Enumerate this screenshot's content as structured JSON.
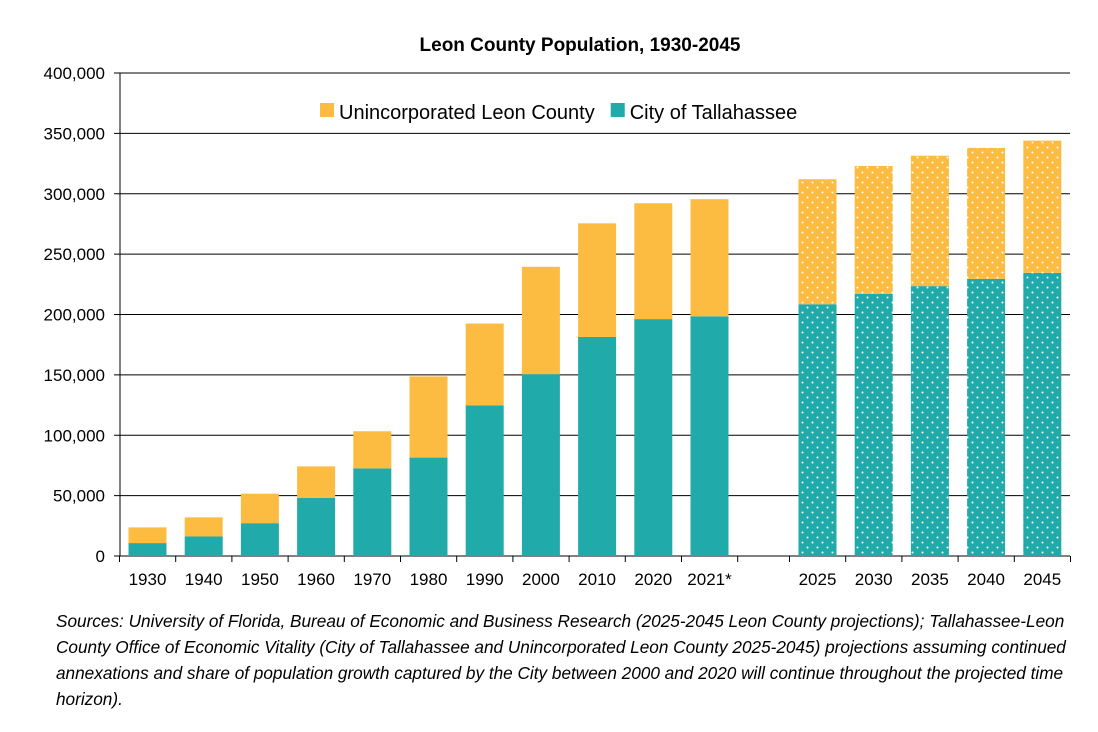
{
  "chart_data": {
    "type": "bar",
    "stacked": true,
    "title": "Leon County Population, 1930-2045",
    "xlabel": "",
    "ylabel": "",
    "ylim": [
      0,
      400000
    ],
    "yticks": [
      0,
      50000,
      100000,
      150000,
      200000,
      250000,
      300000,
      350000,
      400000
    ],
    "ytick_labels": [
      "0",
      "50,000",
      "100,000",
      "150,000",
      "200,000",
      "250,000",
      "300,000",
      "350,000",
      "400,000"
    ],
    "grid": true,
    "legend_position": "top-center",
    "categories": [
      "1930",
      "1940",
      "1950",
      "1960",
      "1970",
      "1980",
      "1990",
      "2000",
      "2010",
      "2020",
      "2021*",
      "2025",
      "2030",
      "2035",
      "2040",
      "2045"
    ],
    "projected": [
      false,
      false,
      false,
      false,
      false,
      false,
      false,
      false,
      false,
      false,
      false,
      true,
      true,
      true,
      true,
      true
    ],
    "series": [
      {
        "name": "City of Tallahassee",
        "color": "#20aaaa",
        "values": [
          10700,
          16200,
          27200,
          48200,
          72600,
          81500,
          124800,
          150600,
          181400,
          196200,
          198500,
          208500,
          217000,
          223500,
          229500,
          234500
        ]
      },
      {
        "name": "Unincorporated Leon County",
        "color": "#fbbc41",
        "values": [
          13000,
          15800,
          24400,
          26000,
          30700,
          67200,
          67700,
          88900,
          94100,
          95900,
          97000,
          103500,
          106000,
          108000,
          108500,
          109500
        ]
      }
    ],
    "legend_order": [
      "Unincorporated Leon County",
      "City of Tallahassee"
    ]
  },
  "source_note": "Sources: University of Florida, Bureau of Economic and Business Research (2025-2045 Leon County projections); Tallahassee-Leon County Office of Economic Vitality (City of Tallahassee and Unincorporated Leon County 2025-2045) projections assuming continued annexations and share of population growth captured by the City between 2000 and 2020 will continue throughout the projected time horizon)."
}
